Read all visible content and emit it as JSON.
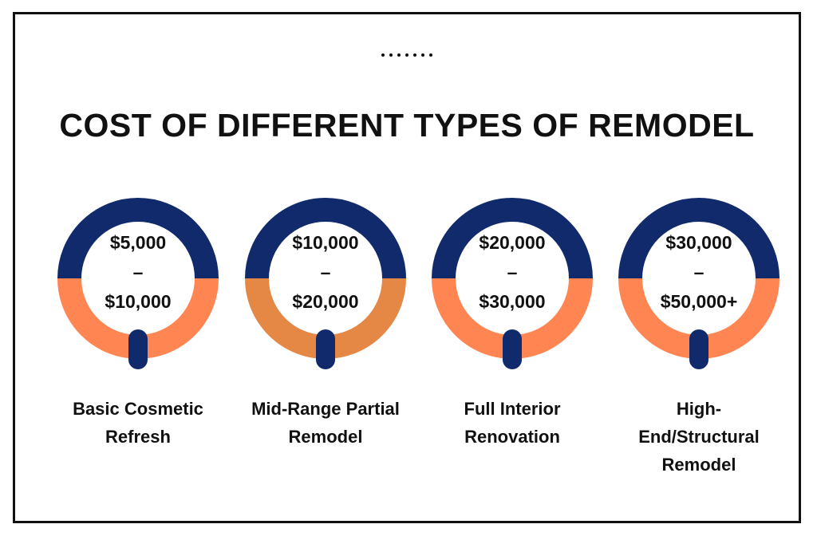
{
  "title": "COST OF DIFFERENT TYPES OF REMODEL",
  "colors": {
    "navy": "#102a6b",
    "orange": "#ff8552",
    "orange_alt": "#e58745"
  },
  "cards": [
    {
      "range_low": "$5,000",
      "separator": "–",
      "range_high": "$10,000",
      "label": "Basic Cosmetic Refresh",
      "lower_color": "#ff8552"
    },
    {
      "range_low": "$10,000",
      "separator": "–",
      "range_high": "$20,000",
      "label": "Mid-Range Partial Remodel",
      "lower_color": "#e58745"
    },
    {
      "range_low": "$20,000",
      "separator": "–",
      "range_high": "$30,000",
      "label": "Full Interior Renovation",
      "lower_color": "#ff8552"
    },
    {
      "range_low": "$30,000",
      "separator": "–",
      "range_high": "$50,000+",
      "label": "High-End/Structural Remodel",
      "lower_color": "#ff8552"
    }
  ]
}
